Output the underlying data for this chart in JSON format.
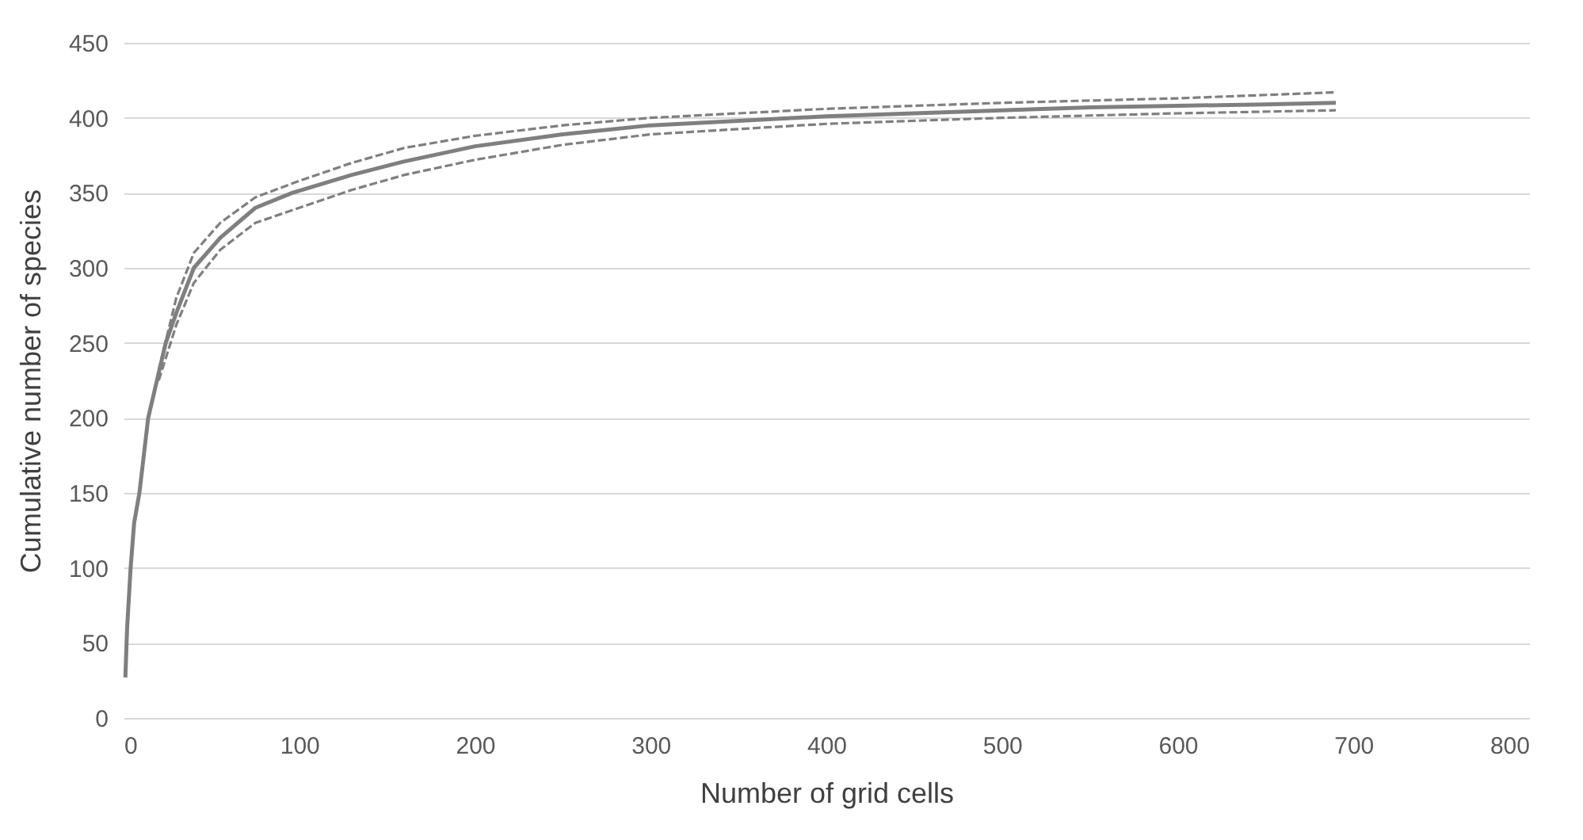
{
  "chart_data": {
    "type": "line",
    "xlabel": "Number of grid cells",
    "ylabel": "Cumulative number of species",
    "xlim": [
      0,
      800
    ],
    "xticks": [
      0,
      100,
      200,
      300,
      400,
      500,
      600,
      700,
      800
    ],
    "ylim": [
      0,
      450
    ],
    "yticks": [
      0,
      50,
      100,
      150,
      200,
      250,
      300,
      350,
      400,
      450
    ],
    "grid": "y",
    "marker": "none",
    "series": [
      {
        "color": "#7f7f7f",
        "line_style": "solid",
        "x": [
          1,
          2,
          4,
          6,
          9,
          14,
          20,
          24,
          30,
          40,
          55,
          75,
          96,
          130,
          160,
          200,
          250,
          300,
          350,
          400,
          450,
          500,
          550,
          600,
          650,
          690
        ],
        "values": [
          27,
          60,
          100,
          130,
          150,
          200,
          230,
          250,
          270,
          300,
          320,
          340,
          350,
          362,
          371,
          381,
          389,
          395,
          398,
          401,
          403,
          405,
          407,
          408,
          409,
          410
        ]
      },
      {
        "color": "#7f7f7f",
        "line_style": "dashed",
        "x": [
          20,
          30,
          40,
          55,
          75,
          100,
          130,
          160,
          200,
          250,
          300,
          400,
          500,
          600,
          690
        ],
        "values": [
          232,
          280,
          310,
          330,
          347,
          358,
          370,
          380,
          388,
          395,
          400,
          406,
          410,
          413,
          417
        ]
      },
      {
        "color": "#7f7f7f",
        "line_style": "dashed",
        "x": [
          20,
          30,
          40,
          55,
          75,
          100,
          130,
          160,
          200,
          250,
          300,
          400,
          500,
          600,
          690
        ],
        "values": [
          225,
          262,
          290,
          312,
          330,
          340,
          352,
          362,
          372,
          382,
          389,
          396,
          400,
          403,
          405
        ]
      }
    ]
  }
}
